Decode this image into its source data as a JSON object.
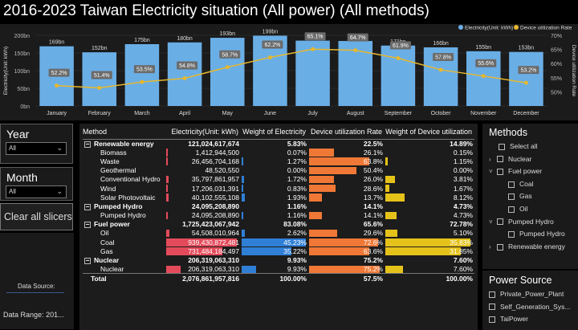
{
  "title": "2016-2023 Taiwan Electricity situation (All power) (All methods)",
  "chart_data": {
    "type": "bar",
    "categories": [
      "January",
      "February",
      "March",
      "April",
      "May",
      "June",
      "July",
      "August",
      "September",
      "October",
      "November",
      "December"
    ],
    "series": [
      {
        "name": "Electricity(Unit: kWh)",
        "type": "bar",
        "values": [
          169,
          152,
          175,
          180,
          193,
          199,
          185,
          184,
          171,
          166,
          155,
          153
        ],
        "labels": [
          "169bn",
          "152bn",
          "175bn",
          "180bn",
          "193bn",
          "199bn",
          "185bn",
          "184bn",
          "171bn",
          "166bn",
          "155bn",
          "153bn"
        ]
      },
      {
        "name": "Device utilization Rate",
        "type": "line",
        "values": [
          52.2,
          51.4,
          53.5,
          54.8,
          58.7,
          62.2,
          65.1,
          64.7,
          61.9,
          57.8,
          55.6,
          53.2
        ],
        "labels": [
          "52.2%",
          "51.4%",
          "53.5%",
          "54.8%",
          "58.7%",
          "62.2%",
          "65.1%",
          "64.7%",
          "61.9%",
          "57.8%",
          "55.6%",
          "53.2%"
        ]
      }
    ],
    "ylabel": "Electricity(Unit: kWh)",
    "y2label": "Device utilization Rate",
    "ylim": [
      0,
      200
    ],
    "y2lim": [
      45,
      70
    ],
    "yticks": [
      "0bn",
      "50bn",
      "100bn",
      "150bn",
      "200bn"
    ],
    "y2ticks": [
      "50%",
      "55%",
      "60%",
      "65%",
      "70%"
    ],
    "legend": [
      "Electricity(Unit: kWh)",
      "Device utilization Rate"
    ],
    "legend_position": "top-right",
    "colors": {
      "bar": "#6aaee6",
      "line": "#e6b82e"
    }
  },
  "slicers": {
    "year": {
      "label": "Year",
      "value": "All"
    },
    "month": {
      "label": "Month",
      "value": "All"
    },
    "clear": "Clear all slicers"
  },
  "info": {
    "source_label": "Data Source:",
    "range_label": "Data Range:",
    "range_value": "201..."
  },
  "table": {
    "headers": [
      "Method",
      "Electricity(Unit: kWh)",
      "Weight of Electricity",
      "Device utilization Rate",
      "Weight of Device utilization"
    ],
    "rows": [
      {
        "kind": "group",
        "name": "Renewable energy",
        "elec": "121,024,617,674",
        "welec": "5.83%",
        "util": "22.5%",
        "wutil": "14.89%",
        "eb": 0,
        "wb": 0,
        "ub": 0,
        "wub": 0
      },
      {
        "kind": "child",
        "name": "Biomass",
        "elec": "1,412,944,500",
        "welec": "0.07%",
        "util": "26.1%",
        "wutil": "0.15%",
        "eb": 0.002,
        "wb": 0,
        "ub": 0.34,
        "wub": 0,
        "ec": "#e34b5b"
      },
      {
        "kind": "child",
        "name": "Waste",
        "elec": "26,456,704,168",
        "welec": "1.27%",
        "util": "63.8%",
        "wutil": "1.15%",
        "eb": 0.02,
        "wb": 0.03,
        "ub": 0.83,
        "wub": 0.03,
        "ec": "#e34b5b"
      },
      {
        "kind": "child",
        "name": "Geothermal",
        "elec": "48,520,550",
        "welec": "0.00%",
        "util": "50.4%",
        "wutil": "0.00%",
        "eb": 0,
        "wb": 0,
        "ub": 0.66,
        "wub": 0,
        "ec": "#e34b5b"
      },
      {
        "kind": "child",
        "name": "Conventional Hydro",
        "elec": "35,797,861,957",
        "welec": "1.72%",
        "util": "26.0%",
        "wutil": "3.81%",
        "eb": 0.03,
        "wb": 0.04,
        "ub": 0.34,
        "wub": 0.11,
        "ec": "#e34b5b"
      },
      {
        "kind": "child",
        "name": "Wind",
        "elec": "17,206,031,391",
        "welec": "0.83%",
        "util": "28.6%",
        "wutil": "1.67%",
        "eb": 0.015,
        "wb": 0.02,
        "ub": 0.37,
        "wub": 0.05,
        "ec": "#e34b5b"
      },
      {
        "kind": "child",
        "name": "Solar Photovoltaic",
        "elec": "40,102,555,108",
        "welec": "1.93%",
        "util": "13.7%",
        "wutil": "8.12%",
        "eb": 0.035,
        "wb": 0.045,
        "ub": 0.18,
        "wub": 0.23,
        "ec": "#e34b5b"
      },
      {
        "kind": "group",
        "name": "Pumped Hydro",
        "elec": "24,095,208,890",
        "welec": "1.16%",
        "util": "14.1%",
        "wutil": "4.73%",
        "eb": 0,
        "wb": 0,
        "ub": 0,
        "wub": 0
      },
      {
        "kind": "child",
        "name": "Pumped Hydro",
        "elec": "24,095,208,890",
        "welec": "1.16%",
        "util": "14.1%",
        "wutil": "4.73%",
        "eb": 0.02,
        "wb": 0.03,
        "ub": 0.18,
        "wub": 0.13,
        "ec": "#e34b5b"
      },
      {
        "kind": "group",
        "name": "Fuel power",
        "elec": "1,725,423,067,942",
        "welec": "83.08%",
        "util": "65.6%",
        "wutil": "72.78%",
        "eb": 0,
        "wb": 0,
        "ub": 0,
        "wub": 0
      },
      {
        "kind": "child",
        "name": "Oil",
        "elec": "54,508,010,964",
        "welec": "2.62%",
        "util": "29.6%",
        "wutil": "5.10%",
        "eb": 0.05,
        "wb": 0.05,
        "ub": 0.39,
        "wub": 0.14,
        "ec": "#e34b5b"
      },
      {
        "kind": "child",
        "name": "Coal",
        "elec": "939,430,872,481",
        "welec": "45.23%",
        "util": "72.6%",
        "wutil": "35.83%",
        "eb": 1.0,
        "wb": 1.0,
        "ub": 0.95,
        "wub": 1.0,
        "ec": "#e34b5b"
      },
      {
        "kind": "child",
        "name": "Gas",
        "elec": "731,484,184,497",
        "welec": "35.22%",
        "util": "63.6%",
        "wutil": "31.85%",
        "eb": 0.8,
        "wb": 0.78,
        "ub": 0.83,
        "wub": 0.89,
        "ec": "#e34b5b"
      },
      {
        "kind": "group",
        "name": "Nuclear",
        "elec": "206,319,063,310",
        "welec": "9.93%",
        "util": "75.2%",
        "wutil": "7.60%",
        "eb": 0,
        "wb": 0,
        "ub": 0,
        "wub": 0
      },
      {
        "kind": "child",
        "name": "Nuclear",
        "elec": "206,319,063,310",
        "welec": "9.93%",
        "util": "75.2%",
        "wutil": "7.60%",
        "eb": 0.2,
        "wb": 0.22,
        "ub": 0.98,
        "wub": 0.21,
        "ec": "#e34b5b"
      },
      {
        "kind": "total",
        "name": "Total",
        "elec": "2,076,861,957,816",
        "welec": "100.00%",
        "util": "57.5%",
        "wutil": "100.00%",
        "eb": 0,
        "wb": 0,
        "ub": 0,
        "wub": 0
      }
    ],
    "colors": {
      "elec": "#e34b5b",
      "welec": "#2f7fd6",
      "util": "#f07836",
      "wutil": "#e5c21a"
    }
  },
  "methods": {
    "title": "Methods",
    "items": [
      {
        "label": "Select all",
        "level": 1,
        "chevron": ""
      },
      {
        "label": "Nuclear",
        "level": 0,
        "chevron": "›"
      },
      {
        "label": "Fuel power",
        "level": 0,
        "chevron": "‹"
      },
      {
        "label": "Coal",
        "level": 1,
        "chevron": ""
      },
      {
        "label": "Gas",
        "level": 1,
        "chevron": ""
      },
      {
        "label": "Oil",
        "level": 1,
        "chevron": ""
      },
      {
        "label": "Pumped Hydro",
        "level": 0,
        "chevron": "‹"
      },
      {
        "label": "Pumped Hydro",
        "level": 1,
        "chevron": ""
      },
      {
        "label": "Renewable energy",
        "level": 0,
        "chevron": "›"
      }
    ]
  },
  "power_source": {
    "title": "Power Source",
    "items": [
      "Private_Power_Plant",
      "Self_Generation_Sys...",
      "TaiPower"
    ]
  }
}
